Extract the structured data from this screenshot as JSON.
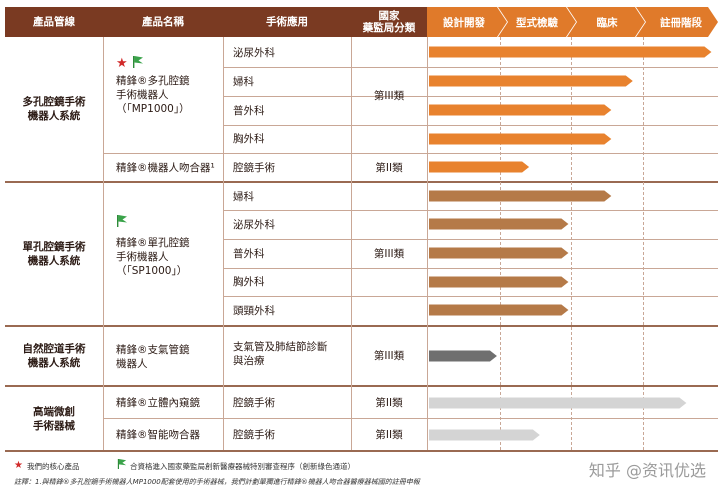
{
  "header": {
    "col_product_line": "產品管線",
    "col_product_name": "產品名稱",
    "col_application": "手術應用",
    "col_class_line1": "國家",
    "col_class_line2": "藥監局分類",
    "stages": [
      "設計開發",
      "型式檢驗",
      "臨床",
      "註冊階段"
    ]
  },
  "categories": [
    {
      "name_line1": "多孔腔鏡手術",
      "name_line2": "機器人系統"
    },
    {
      "name_line1": "單孔腔鏡手術",
      "name_line2": "機器人系統"
    },
    {
      "name_line1": "自然腔道手術",
      "name_line2": "機器人系統"
    },
    {
      "name_line1": "高端微創",
      "name_line2": "手術器械"
    }
  ],
  "products": [
    {
      "lines": [
        "精鋒®多孔腔鏡",
        "手術機器人",
        "（「MP1000」）"
      ]
    },
    {
      "lines": [
        "精鋒®機器人吻合器¹"
      ]
    },
    {
      "lines": [
        "精鋒®單孔腔鏡",
        "手術機器人",
        "（「SP1000」）"
      ]
    },
    {
      "lines": [
        "精鋒®支氣管鏡",
        "機器人"
      ]
    },
    {
      "lines": [
        "精鋒®立體內窺鏡"
      ]
    },
    {
      "lines": [
        "精鋒®智能吻合器"
      ]
    }
  ],
  "classes": [
    "第III類",
    "第II類",
    "第III類",
    "第III類",
    "第II類",
    "第II類"
  ],
  "applications": [
    "泌尿外科",
    "婦科",
    "普外科",
    "胸外科",
    "腔鏡手術",
    "婦科",
    "泌尿外科",
    "普外科",
    "胸外科",
    "頭頸外科",
    "支氣管及肺結節診斷",
    "與治療",
    "腔鏡手術",
    "腔鏡手術"
  ],
  "chart_data": {
    "type": "bar",
    "title": "",
    "stages": [
      "設計開發",
      "型式檢驗",
      "臨床",
      "註冊階段"
    ],
    "rows": [
      {
        "product": "精鋒®多孔腔鏡手術機器人（「MP1000」）",
        "application": "泌尿外科",
        "progress": 3.95,
        "color": "#e8822e"
      },
      {
        "product": "精鋒®多孔腔鏡手術機器人（「MP1000」）",
        "application": "婦科",
        "progress": 2.85,
        "color": "#e8822e"
      },
      {
        "product": "精鋒®多孔腔鏡手術機器人（「MP1000」）",
        "application": "普外科",
        "progress": 2.55,
        "color": "#e8822e"
      },
      {
        "product": "精鋒®多孔腔鏡手術機器人（「MP1000」）",
        "application": "胸外科",
        "progress": 2.55,
        "color": "#e8822e"
      },
      {
        "product": "精鋒®機器人吻合器",
        "application": "腔鏡手術",
        "progress": 1.4,
        "color": "#e8822e"
      },
      {
        "product": "精鋒®單孔腔鏡手術機器人（「SP1000」）",
        "application": "婦科",
        "progress": 2.55,
        "color": "#b57a48"
      },
      {
        "product": "精鋒®單孔腔鏡手術機器人（「SP1000」）",
        "application": "泌尿外科",
        "progress": 1.95,
        "color": "#b57a48"
      },
      {
        "product": "精鋒®單孔腔鏡手術機器人（「SP1000」）",
        "application": "普外科",
        "progress": 1.95,
        "color": "#b57a48"
      },
      {
        "product": "精鋒®單孔腔鏡手術機器人（「SP1000」）",
        "application": "胸外科",
        "progress": 1.95,
        "color": "#b57a48"
      },
      {
        "product": "精鋒®單孔腔鏡手術機器人（「SP1000」）",
        "application": "頭頸外科",
        "progress": 1.95,
        "color": "#b57a48"
      },
      {
        "product": "精鋒®支氣管鏡機器人",
        "application": "支氣管及肺結節診斷與治療",
        "progress": 0.95,
        "color": "#6f6f6f"
      },
      {
        "product": "精鋒®立體內窺鏡",
        "application": "腔鏡手術",
        "progress": 3.6,
        "color": "#d4d4d4"
      },
      {
        "product": "精鋒®智能吻合器",
        "application": "腔鏡手術",
        "progress": 1.55,
        "color": "#d4d4d4"
      }
    ]
  },
  "colors": {
    "header": "#7a3a22",
    "stage_header": "#e07a2a",
    "orange_bar": "#e8822e",
    "brown_bar": "#b57a48",
    "dark_bar": "#6f6f6f",
    "light_bar": "#d4d4d4"
  },
  "footer": {
    "legend_core": "我們的核心產品",
    "legend_green": "合資格進入國家藥監局創新醫療器械特別審查程序（創新綠色通道）",
    "note": "註釋：1.與精鋒®多孔腔鏡手術機器人MP1000配套使用的手術器械，我們計劃單獨進行精鋒®機器人吻合器醫療器械國的註冊申報"
  },
  "watermark": "知乎 @资讯优选"
}
